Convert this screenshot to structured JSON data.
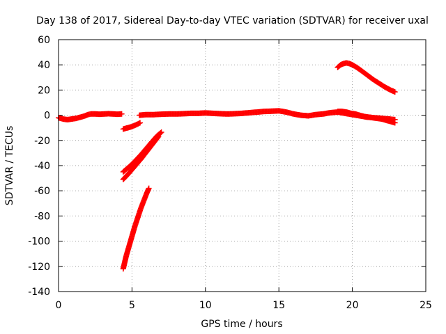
{
  "chart_data": {
    "type": "scatter",
    "title": "Day 138 of 2017, Sidereal Day-to-day VTEC variation (SDTVAR) for receiver uxal",
    "xlabel": "GPS time / hours",
    "ylabel": "SDTVAR / TECUs",
    "xlim": [
      0,
      25
    ],
    "ylim": [
      -140,
      60
    ],
    "xticks": [
      0,
      5,
      10,
      15,
      20,
      25
    ],
    "yticks": [
      -140,
      -120,
      -100,
      -80,
      -60,
      -40,
      -20,
      0,
      20,
      40,
      60
    ],
    "grid": true,
    "marker": "plus",
    "color": "#ff0000",
    "series": [
      {
        "x": [
          0.0,
          0.3,
          0.6,
          0.9,
          1.2,
          1.5,
          1.8,
          2.0,
          2.2,
          2.5,
          2.8,
          3.1,
          3.4,
          3.7,
          4.0,
          4.3
        ],
        "y": [
          -2,
          -3,
          -3.5,
          -3,
          -2.5,
          -1.5,
          -0.5,
          0.5,
          1,
          1,
          0.8,
          1,
          1.2,
          1,
          0.8,
          1
        ]
      },
      {
        "x": [
          5.5,
          6.0,
          6.5,
          7.0,
          7.5,
          8.0,
          8.5,
          9.0,
          9.5,
          10.0,
          10.5,
          11.0,
          11.5,
          12.0,
          12.5,
          13.0,
          13.5,
          14.0,
          14.5,
          15.0,
          15.5,
          16.0,
          16.5,
          17.0,
          17.5,
          18.0,
          18.5,
          19.0,
          19.5,
          20.0,
          20.5,
          21.0,
          21.5,
          22.0,
          22.5,
          22.9
        ],
        "y": [
          0,
          0.5,
          0.5,
          0.8,
          1,
          1,
          1.2,
          1.5,
          1.5,
          1.8,
          1.5,
          1.2,
          1.0,
          1.2,
          1.5,
          2.0,
          2.5,
          3.0,
          3.2,
          3.5,
          2.5,
          1.0,
          0,
          -0.5,
          0.5,
          1.0,
          2.0,
          2.5,
          1.5,
          0.5,
          -0.5,
          -1.5,
          -2.0,
          -2.5,
          -3.0,
          -3.5
        ]
      },
      {
        "x": [
          19.0,
          19.3,
          19.6,
          19.9,
          20.2,
          20.5,
          20.8,
          21.1,
          21.4,
          21.7,
          22.0,
          22.3,
          22.6,
          22.9
        ],
        "y": [
          3,
          3,
          2.5,
          1.5,
          1,
          0,
          -1,
          -1.5,
          -2,
          -2.5,
          -3,
          -4,
          -5,
          -6
        ]
      },
      {
        "x": [
          19.0,
          19.2,
          19.4,
          19.6,
          19.8,
          20.0,
          20.3,
          20.6,
          21.0,
          21.4,
          21.8,
          22.2,
          22.6,
          22.9
        ],
        "y": [
          38,
          40,
          41,
          41.5,
          41,
          40,
          38,
          35.5,
          32,
          28.5,
          25.5,
          22.5,
          20,
          18.5
        ]
      },
      {
        "x": [
          4.4,
          4.7,
          5.0,
          5.3,
          5.55
        ],
        "y": [
          -11,
          -10,
          -9,
          -7.5,
          -6
        ]
      },
      {
        "x": [
          4.4,
          4.8,
          5.2,
          5.6,
          6.0,
          6.4,
          6.7,
          7.0
        ],
        "y": [
          -45,
          -41,
          -36.5,
          -31.5,
          -26,
          -20.5,
          -16.5,
          -13.5
        ]
      },
      {
        "x": [
          4.4,
          4.8,
          5.2,
          5.6,
          6.0,
          6.4,
          6.8
        ],
        "y": [
          -51,
          -46,
          -40.5,
          -35,
          -29,
          -23,
          -17
        ]
      },
      {
        "x": [
          4.4,
          4.5,
          4.6,
          4.8,
          5.0,
          5.2,
          5.4,
          5.6,
          5.8,
          6.0,
          6.15
        ],
        "y": [
          -122,
          -117,
          -112,
          -104,
          -96,
          -88,
          -81,
          -74,
          -68,
          -62,
          -58
        ]
      }
    ]
  }
}
